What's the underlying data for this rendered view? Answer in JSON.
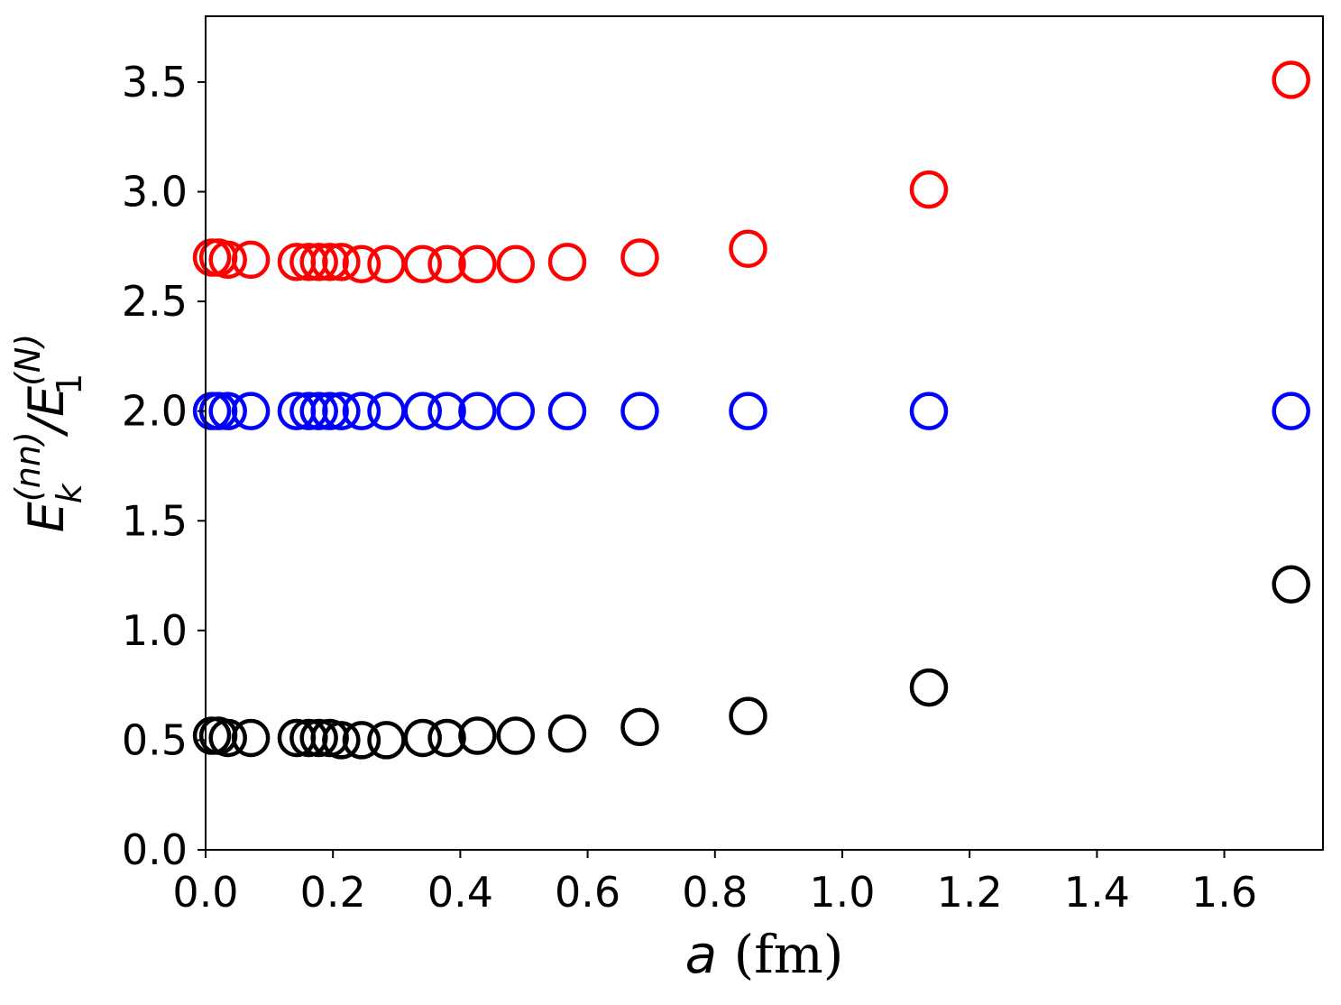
{
  "chart_data": {
    "type": "scatter",
    "xlabel_italic": "a",
    "xlabel_rest": " (fm)",
    "ylabel": {
      "E1": "E",
      "sup1": "(nn)",
      "sub1": "k",
      "slash": "/",
      "E2": "E",
      "sup2": "(N)",
      "sub2": "1"
    },
    "xlim": [
      0.0,
      1.755
    ],
    "ylim": [
      0.0,
      3.8
    ],
    "xticks": [
      0.0,
      0.2,
      0.4,
      0.6,
      0.8,
      1.0,
      1.2,
      1.4,
      1.6
    ],
    "xtick_labels": [
      "0.0",
      "0.2",
      "0.4",
      "0.6",
      "0.8",
      "1.0",
      "1.2",
      "1.4",
      "1.6"
    ],
    "yticks": [
      0.0,
      0.5,
      1.0,
      1.5,
      2.0,
      2.5,
      3.0,
      3.5
    ],
    "ytick_labels": [
      "0.0",
      "0.5",
      "1.0",
      "1.5",
      "2.0",
      "2.5",
      "3.0",
      "3.5"
    ],
    "grid": false,
    "marker": "open-circle",
    "series": [
      {
        "color": "#000000",
        "x": [
          0.01,
          0.02,
          0.035,
          0.071,
          0.143,
          0.162,
          0.178,
          0.195,
          0.213,
          0.245,
          0.284,
          0.341,
          0.379,
          0.427,
          0.487,
          0.568,
          0.682,
          0.852,
          1.136,
          1.705
        ],
        "y": [
          0.52,
          0.52,
          0.51,
          0.51,
          0.51,
          0.51,
          0.51,
          0.51,
          0.5,
          0.5,
          0.5,
          0.51,
          0.51,
          0.52,
          0.52,
          0.53,
          0.56,
          0.61,
          0.74,
          1.21
        ]
      },
      {
        "color": "#0000ff",
        "x": [
          0.01,
          0.02,
          0.035,
          0.071,
          0.143,
          0.162,
          0.178,
          0.195,
          0.213,
          0.245,
          0.284,
          0.341,
          0.379,
          0.427,
          0.487,
          0.568,
          0.682,
          0.852,
          1.136,
          1.705
        ],
        "y": [
          2.0,
          2.0,
          2.0,
          2.0,
          2.0,
          2.0,
          2.0,
          2.0,
          2.0,
          2.0,
          2.0,
          2.0,
          2.0,
          2.0,
          2.0,
          2.0,
          2.0,
          2.0,
          2.0,
          2.0
        ]
      },
      {
        "color": "#ff0000",
        "x": [
          0.01,
          0.02,
          0.035,
          0.071,
          0.143,
          0.162,
          0.178,
          0.195,
          0.213,
          0.245,
          0.284,
          0.341,
          0.379,
          0.427,
          0.487,
          0.568,
          0.682,
          0.852,
          1.136,
          1.705
        ],
        "y": [
          2.7,
          2.7,
          2.69,
          2.69,
          2.68,
          2.68,
          2.68,
          2.68,
          2.68,
          2.67,
          2.67,
          2.67,
          2.67,
          2.67,
          2.67,
          2.68,
          2.7,
          2.74,
          3.01,
          3.51
        ]
      }
    ]
  }
}
